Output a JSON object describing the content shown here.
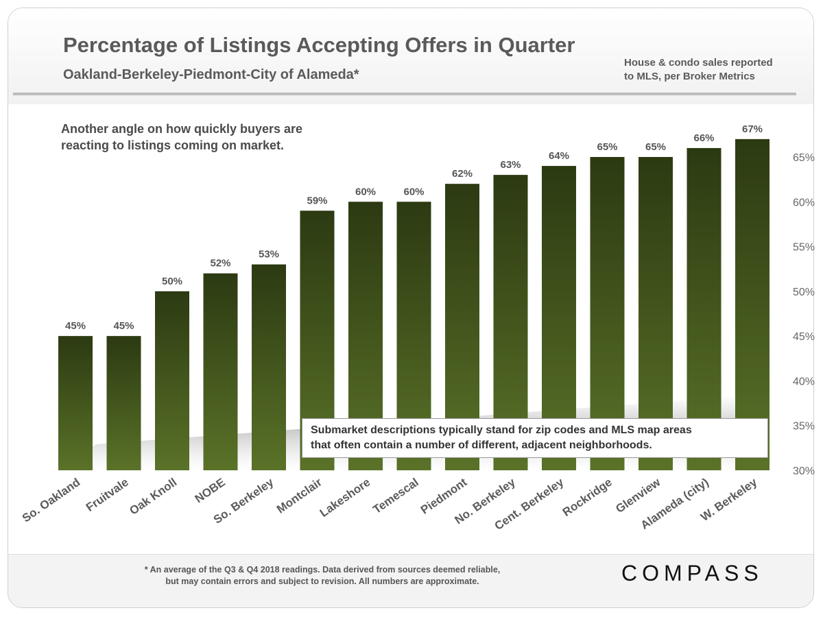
{
  "header": {
    "title": "Percentage of Listings Accepting Offers in Quarter",
    "subtitle": "Oakland-Berkeley-Piedmont-City  of Alameda*",
    "source_line1": "House & condo sales reported",
    "source_line2": "to MLS, per Broker Metrics"
  },
  "annotations": {
    "note1_line1": "Another angle on how quickly buyers are",
    "note1_line2": "reacting to listings coming on market.",
    "note2_line1": "Submarket descriptions typically stand for zip codes and MLS map areas",
    "note2_line2": "that often contain a number of different, adjacent neighborhoods."
  },
  "footer": {
    "footnote_line1": "* An average of the Q3 & Q4 2018 readings. Data derived from sources deemed reliable,",
    "footnote_line2": "but may contain errors and subject to revision.  All numbers are approximate.",
    "logo": "COMPASS"
  },
  "colors": {
    "bar_top": "#2c3a12",
    "bar_bottom": "#5a7228",
    "label_text": "#555555"
  },
  "chart_data": {
    "type": "bar",
    "categories": [
      "So. Oakland",
      "Fruitvale",
      "Oak Knoll",
      "NOBE",
      "So. Berkeley",
      "Montclair",
      "Lakeshore",
      "Temescal",
      "Piedmont",
      "No. Berkeley",
      "Cent. Berkeley",
      "Rockridge",
      "Glenview",
      "Alameda (city)",
      "W. Berkeley"
    ],
    "values": [
      45,
      45,
      50,
      52,
      53,
      59,
      60,
      60,
      62,
      63,
      64,
      65,
      65,
      66,
      67
    ],
    "data_labels": [
      "45%",
      "45%",
      "50%",
      "52%",
      "53%",
      "59%",
      "60%",
      "60%",
      "62%",
      "63%",
      "64%",
      "65%",
      "65%",
      "66%",
      "67%"
    ],
    "y_ticks": [
      30,
      35,
      40,
      45,
      50,
      55,
      60,
      65
    ],
    "y_tick_labels": [
      "30%",
      "35%",
      "40%",
      "45%",
      "50%",
      "55%",
      "60%",
      "65%"
    ],
    "ylim": [
      30,
      67
    ],
    "y_axis_side": "right",
    "grid": false,
    "legend": "none"
  }
}
